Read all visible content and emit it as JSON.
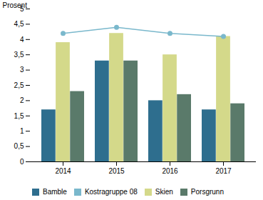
{
  "chart_data": {
    "type": "bar",
    "categories": [
      "2014",
      "2015",
      "2016",
      "2017"
    ],
    "series": [
      {
        "name": "Bamble",
        "color": "#2e6e8e",
        "values": [
          1.7,
          3.3,
          2.0,
          1.7
        ]
      },
      {
        "name": "Kostragruppe 08",
        "type": "line",
        "marker": "circle",
        "color": "#7ab8cc",
        "values": [
          4.2,
          4.4,
          4.2,
          4.1
        ]
      },
      {
        "name": "Skien",
        "color": "#d4d98a",
        "values": [
          3.9,
          4.2,
          3.5,
          4.1
        ]
      },
      {
        "name": "Porsgrunn",
        "color": "#5a7a6a",
        "values": [
          2.3,
          3.3,
          2.2,
          1.9
        ]
      }
    ],
    "ylabel": "Prosent",
    "ylim": [
      0,
      5
    ],
    "yticks": [
      0,
      {
        "value": 0.5,
        "label": "0,5"
      },
      1,
      {
        "value": 1.5,
        "label": "1,5"
      },
      2,
      {
        "value": 2.5,
        "label": "2,5"
      },
      3,
      {
        "value": 3.5,
        "label": "3,5"
      },
      4,
      {
        "value": 4.5,
        "label": "4,5"
      },
      5
    ],
    "grid": false,
    "legend": "bottom"
  }
}
